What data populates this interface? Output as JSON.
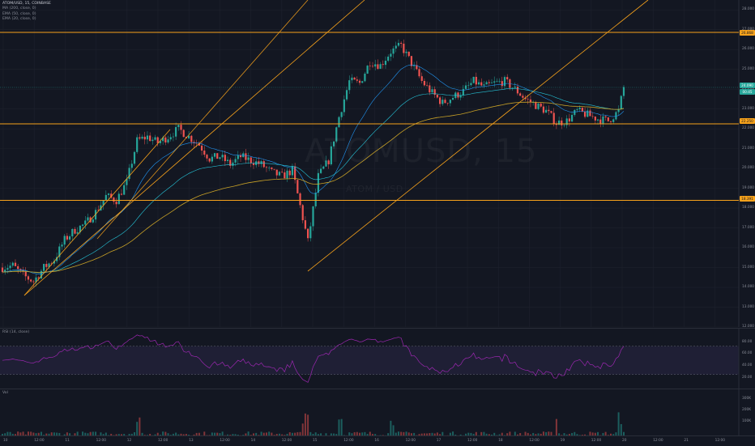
{
  "legend": {
    "symbol": "ATOM/USD, 15, COINBASE",
    "indicators": [
      "MA (200, close, 0)",
      "EMA (50, close, 0)",
      "EMA (20, close, 0)"
    ]
  },
  "watermark": {
    "main": "ATOMUSD, 15",
    "sub": "ATOM / USD"
  },
  "price_axis": {
    "ticks": [
      "28.000",
      "27.000",
      "26.000",
      "25.000",
      "24.000",
      "23.000",
      "22.000",
      "21.000",
      "20.000",
      "19.000",
      "18.000",
      "17.000",
      "16.000",
      "15.000",
      "14.000",
      "13.000",
      "12.000"
    ],
    "tags": [
      {
        "value": "26.868",
        "color": "orange"
      },
      {
        "value": "24.090",
        "color": "green"
      },
      {
        "value": "00:45",
        "color": "green"
      },
      {
        "value": "22.250",
        "color": "orange"
      },
      {
        "value": "18.391",
        "color": "orange"
      }
    ]
  },
  "rsi": {
    "label": "RSI (14, close)",
    "ticks": [
      "80.00",
      "60.00",
      "40.00",
      "20.00"
    ]
  },
  "volume": {
    "label": "Vol",
    "ticks": [
      "300K",
      "200K",
      "100K"
    ]
  },
  "time_axis": {
    "ticks": [
      "10",
      "12:00",
      "11",
      "12:00",
      "12",
      "12:00",
      "13",
      "12:00",
      "14",
      "12:00",
      "15",
      "12:00",
      "16",
      "12:00",
      "17",
      "12:00",
      "18",
      "12:00",
      "19",
      "12:00",
      "20",
      "12:00",
      "21",
      "12:00"
    ]
  },
  "colors": {
    "background": "#131722",
    "up": "#26a69a",
    "down": "#ef5350",
    "level_line": "#f7a21b",
    "rsi": "#9c27b0"
  },
  "chart_data": {
    "type": "candlestick",
    "symbol": "ATOM/USD",
    "interval": "15",
    "y_range": [
      12,
      28.5
    ],
    "horizontal_levels": [
      26.868,
      22.25,
      18.391
    ],
    "close_path": [
      {
        "t": 0,
        "v": 15.0
      },
      {
        "t": 4,
        "v": 15.1
      },
      {
        "t": 8,
        "v": 14.6
      },
      {
        "t": 12,
        "v": 14.3
      },
      {
        "t": 16,
        "v": 15.0
      },
      {
        "t": 20,
        "v": 15.4
      },
      {
        "t": 24,
        "v": 16.4
      },
      {
        "t": 28,
        "v": 16.9
      },
      {
        "t": 32,
        "v": 17.2
      },
      {
        "t": 36,
        "v": 17.8
      },
      {
        "t": 40,
        "v": 18.6
      },
      {
        "t": 44,
        "v": 18.4
      },
      {
        "t": 48,
        "v": 19.3
      },
      {
        "t": 52,
        "v": 21.4
      },
      {
        "t": 56,
        "v": 21.6
      },
      {
        "t": 60,
        "v": 21.3
      },
      {
        "t": 64,
        "v": 21.6
      },
      {
        "t": 68,
        "v": 22.0
      },
      {
        "t": 72,
        "v": 21.6
      },
      {
        "t": 76,
        "v": 21.2
      },
      {
        "t": 80,
        "v": 20.5
      },
      {
        "t": 84,
        "v": 20.6
      },
      {
        "t": 88,
        "v": 20.2
      },
      {
        "t": 92,
        "v": 20.6
      },
      {
        "t": 96,
        "v": 20.4
      },
      {
        "t": 100,
        "v": 20.2
      },
      {
        "t": 104,
        "v": 19.8
      },
      {
        "t": 108,
        "v": 19.6
      },
      {
        "t": 112,
        "v": 19.9
      },
      {
        "t": 116,
        "v": 17.5
      },
      {
        "t": 118,
        "v": 16.3
      },
      {
        "t": 122,
        "v": 19.6
      },
      {
        "t": 126,
        "v": 20.4
      },
      {
        "t": 130,
        "v": 22.6
      },
      {
        "t": 134,
        "v": 24.4
      },
      {
        "t": 138,
        "v": 24.3
      },
      {
        "t": 142,
        "v": 25.4
      },
      {
        "t": 146,
        "v": 25.2
      },
      {
        "t": 150,
        "v": 25.9
      },
      {
        "t": 154,
        "v": 26.2
      },
      {
        "t": 158,
        "v": 25.3
      },
      {
        "t": 162,
        "v": 24.4
      },
      {
        "t": 166,
        "v": 23.8
      },
      {
        "t": 170,
        "v": 23.3
      },
      {
        "t": 174,
        "v": 23.6
      },
      {
        "t": 178,
        "v": 23.9
      },
      {
        "t": 182,
        "v": 24.4
      },
      {
        "t": 186,
        "v": 24.1
      },
      {
        "t": 190,
        "v": 24.3
      },
      {
        "t": 194,
        "v": 24.4
      },
      {
        "t": 198,
        "v": 24.0
      },
      {
        "t": 202,
        "v": 23.5
      },
      {
        "t": 206,
        "v": 23.2
      },
      {
        "t": 210,
        "v": 22.9
      },
      {
        "t": 214,
        "v": 22.3
      },
      {
        "t": 218,
        "v": 22.4
      },
      {
        "t": 222,
        "v": 22.9
      },
      {
        "t": 226,
        "v": 22.7
      },
      {
        "t": 230,
        "v": 22.5
      },
      {
        "t": 234,
        "v": 22.4
      },
      {
        "t": 238,
        "v": 22.9
      },
      {
        "t": 240,
        "v": 24.09
      }
    ]
  }
}
